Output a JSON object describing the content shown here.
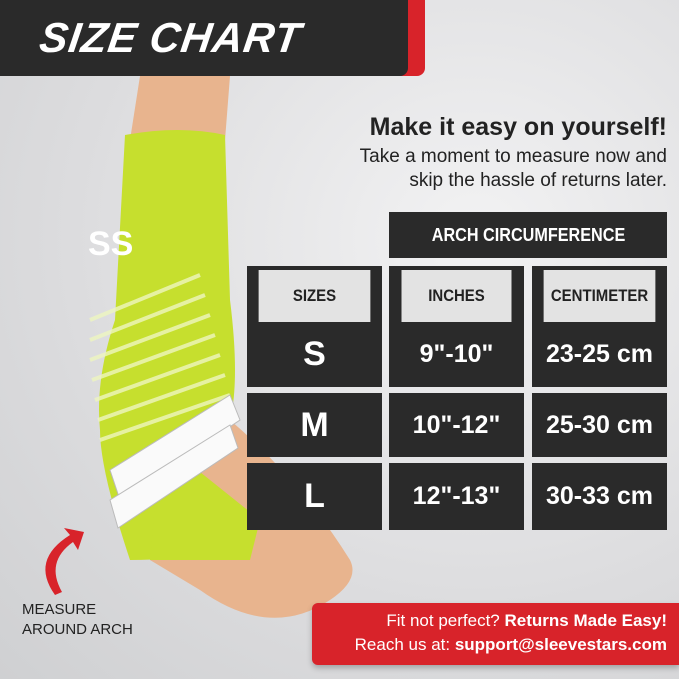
{
  "banner": {
    "title": "SIZE CHART"
  },
  "intro": {
    "headline": "Make it easy on yourself!",
    "line1": "Take a moment to measure now and",
    "line2": "skip the hassle of returns later."
  },
  "table": {
    "group_header": "ARCH CIRCUMFERENCE",
    "columns": [
      "SIZES",
      "INCHES",
      "CENTIMETER"
    ],
    "rows": [
      [
        "S",
        "9\"-10\"",
        "23-25 cm"
      ],
      [
        "M",
        "10\"-12\"",
        "25-30 cm"
      ],
      [
        "L",
        "12\"-13\"",
        "30-33 cm"
      ]
    ]
  },
  "callout": {
    "line1": "MEASURE",
    "line2": "AROUND ARCH",
    "arrow_icon": "curved-arrow-icon"
  },
  "returns": {
    "q": "Fit not perfect? ",
    "bold1": "Returns Made Easy!",
    "reach": "Reach us at: ",
    "email": "support@sleevestars.com"
  },
  "colors": {
    "accent": "#d8232a",
    "dark": "#2a2a2a",
    "sleeve": "#c5e030"
  }
}
